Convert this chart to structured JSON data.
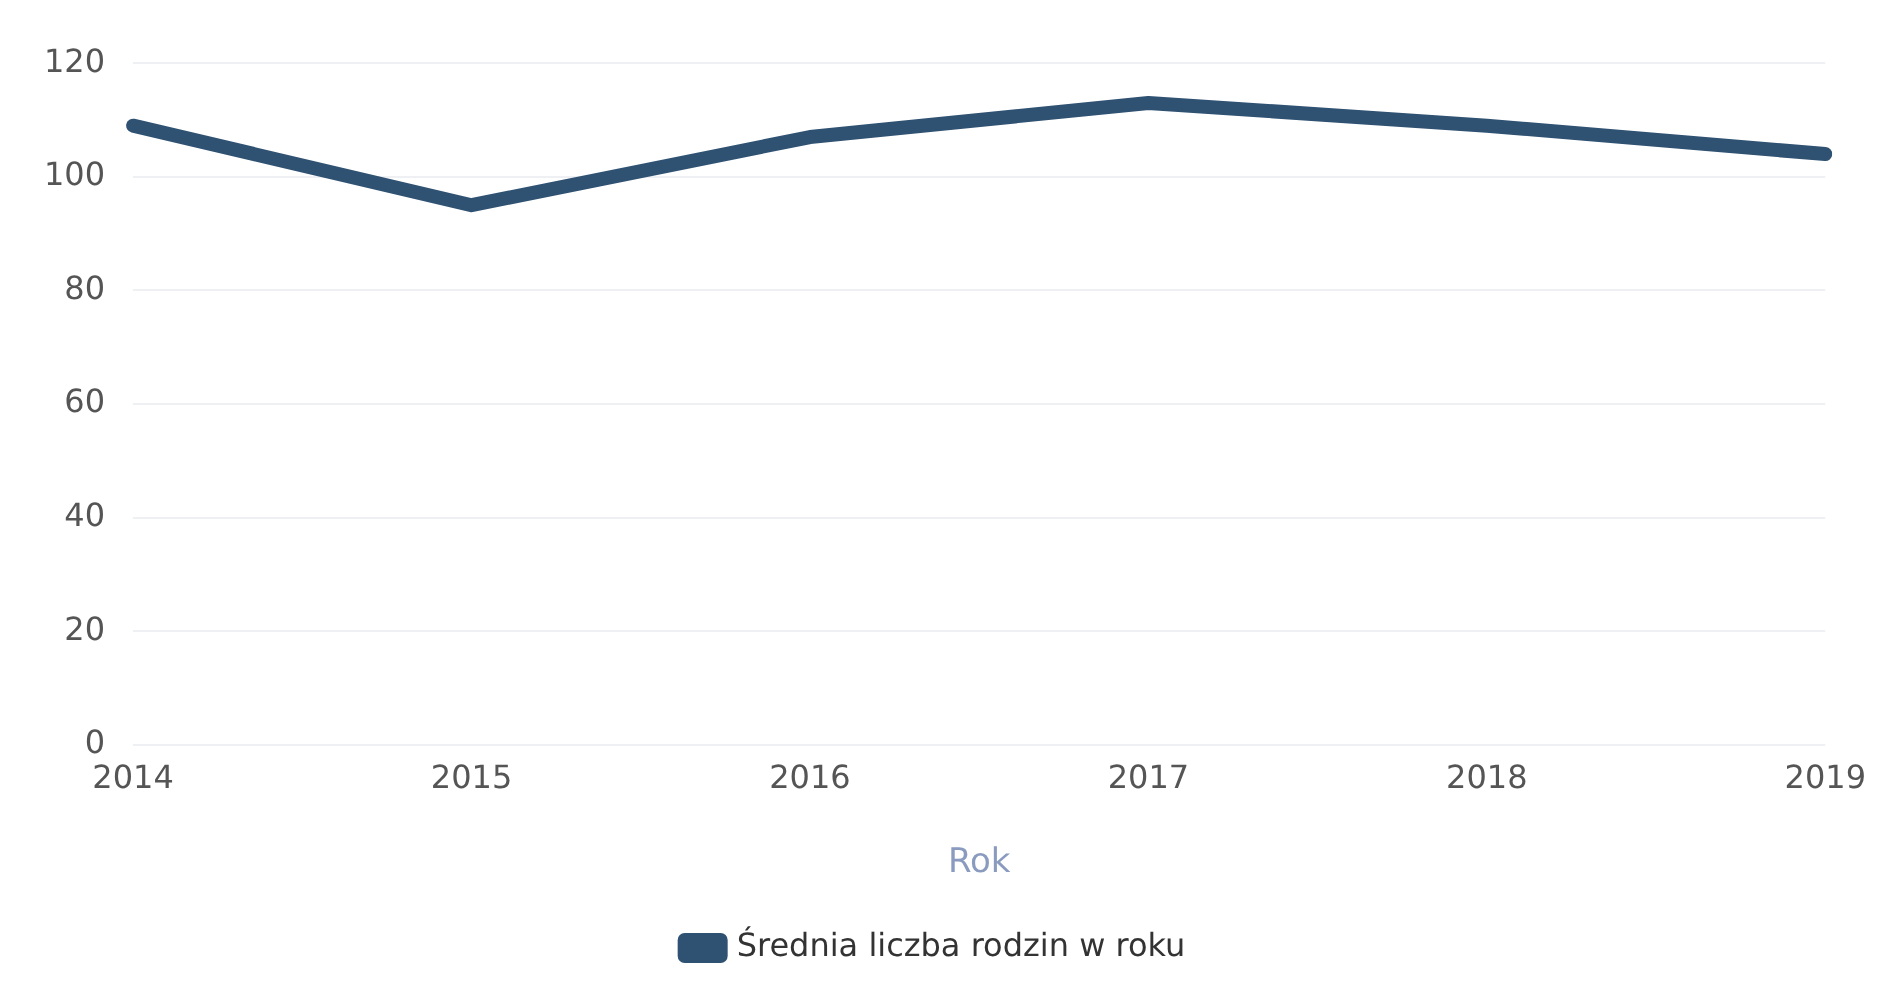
{
  "chart_data": {
    "type": "line",
    "xlabel": "Rok",
    "categories": [
      "2014",
      "2015",
      "2016",
      "2017",
      "2018",
      "2019"
    ],
    "series": [
      {
        "name": "Średnia liczba rodzin w roku",
        "color": "#2f5172",
        "values": [
          109,
          95,
          107,
          113,
          109,
          104
        ]
      }
    ],
    "ylim": [
      0,
      120
    ],
    "yticks": [
      0,
      20,
      40,
      60,
      80,
      100,
      120
    ],
    "grid": "y",
    "legend": "bottom",
    "marker": "none",
    "line_style": "solid"
  }
}
